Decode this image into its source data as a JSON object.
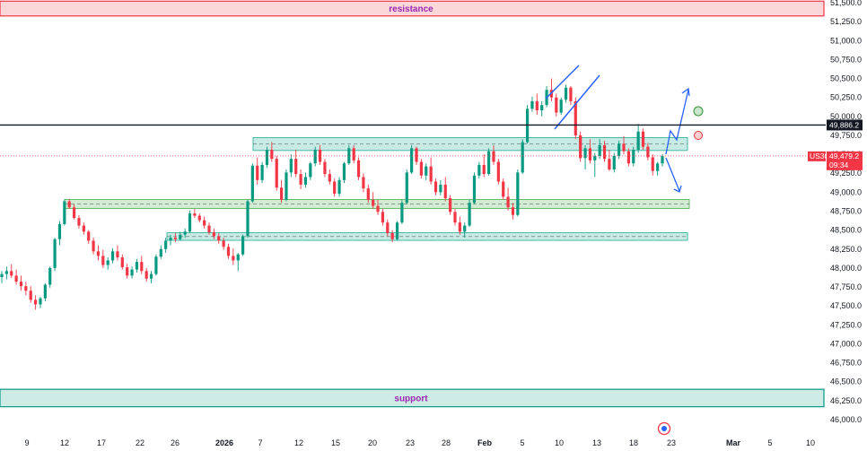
{
  "chart_data": {
    "type": "candlestick",
    "symbol_tag": "US30",
    "last_price": "49,479.2",
    "countdown": "09:34",
    "marked_level": "49,886.2",
    "x_tick_labels": [
      "9",
      "12",
      "17",
      "22",
      "26",
      "2026",
      "7",
      "12",
      "15",
      "20",
      "23",
      "28",
      "Feb",
      "5",
      "10",
      "13",
      "18",
      "23",
      "Mar",
      "5",
      "10"
    ],
    "y_tick_labels": [
      "51,500.0",
      "51,250.0",
      "51,000.0",
      "50,750.0",
      "50,500.0",
      "50,250.0",
      "50,000.0",
      "49,750.0",
      "49,500.0",
      "49,250.0",
      "49,000.0",
      "48,750.0",
      "48,500.0",
      "48,250.0",
      "48,000.0",
      "47,750.0",
      "47,500.0",
      "47,250.0",
      "47,000.0",
      "46,750.0",
      "46,500.0",
      "46,250.0",
      "46,000.0"
    ],
    "ylim": [
      46000,
      51500
    ],
    "zones": [
      {
        "label": "resistance",
        "low": 51325,
        "high": 51520,
        "color": "#f23645",
        "full_width": true
      },
      {
        "label": "support",
        "low": 46170,
        "high": 46400,
        "color": "#089981",
        "full_width": true
      },
      {
        "label": "",
        "low": 49550,
        "high": 49720,
        "color": "#22ab94",
        "full_width": false
      },
      {
        "label": "",
        "low": 48785,
        "high": 48905,
        "color": "#4caf50",
        "full_width": false
      },
      {
        "label": "",
        "low": 48365,
        "high": 48465,
        "color": "#22ab94",
        "full_width": false
      }
    ],
    "horizontal_level": 49886.2,
    "colors": {
      "up": "#089981",
      "down": "#f23645",
      "arrows": "#2962ff",
      "level": "#131722",
      "price_tag": "#f23645"
    },
    "ohlc": [
      [
        47880,
        47960,
        47800,
        47920
      ],
      [
        47920,
        48020,
        47850,
        47960
      ],
      [
        47960,
        48050,
        47870,
        47900
      ],
      [
        47900,
        47980,
        47780,
        47820
      ],
      [
        47820,
        47900,
        47700,
        47760
      ],
      [
        47760,
        47820,
        47640,
        47700
      ],
      [
        47700,
        47760,
        47540,
        47580
      ],
      [
        47580,
        47640,
        47450,
        47520
      ],
      [
        47520,
        47620,
        47470,
        47600
      ],
      [
        47600,
        47800,
        47560,
        47780
      ],
      [
        47780,
        48020,
        47740,
        48000
      ],
      [
        48000,
        48400,
        47960,
        48380
      ],
      [
        48380,
        48620,
        48300,
        48580
      ],
      [
        48580,
        48900,
        48560,
        48880
      ],
      [
        48880,
        48910,
        48780,
        48800
      ],
      [
        48800,
        48840,
        48640,
        48660
      ],
      [
        48660,
        48700,
        48520,
        48560
      ],
      [
        48560,
        48600,
        48440,
        48480
      ],
      [
        48480,
        48500,
        48320,
        48360
      ],
      [
        48360,
        48400,
        48180,
        48220
      ],
      [
        48220,
        48300,
        48100,
        48160
      ],
      [
        48160,
        48240,
        48000,
        48040
      ],
      [
        48040,
        48140,
        47980,
        48100
      ],
      [
        48100,
        48260,
        48060,
        48220
      ],
      [
        48220,
        48300,
        48100,
        48140
      ],
      [
        48140,
        48180,
        47980,
        48010
      ],
      [
        48010,
        48060,
        47860,
        47900
      ],
      [
        47900,
        48020,
        47860,
        47980
      ],
      [
        47980,
        48120,
        47940,
        48080
      ],
      [
        48080,
        48160,
        47920,
        47960
      ],
      [
        47960,
        48000,
        47820,
        47860
      ],
      [
        47860,
        47960,
        47800,
        47920
      ],
      [
        47920,
        48180,
        47900,
        48150
      ],
      [
        48150,
        48300,
        48120,
        48250
      ],
      [
        48250,
        48400,
        48200,
        48360
      ],
      [
        48360,
        48440,
        48300,
        48400
      ],
      [
        48400,
        48460,
        48340,
        48380
      ],
      [
        48380,
        48480,
        48360,
        48440
      ],
      [
        48440,
        48520,
        48400,
        48480
      ],
      [
        48480,
        48760,
        48460,
        48720
      ],
      [
        48720,
        48780,
        48660,
        48690
      ],
      [
        48690,
        48720,
        48600,
        48630
      ],
      [
        48630,
        48680,
        48520,
        48560
      ],
      [
        48560,
        48600,
        48440,
        48470
      ],
      [
        48470,
        48520,
        48380,
        48420
      ],
      [
        48420,
        48460,
        48320,
        48360
      ],
      [
        48360,
        48400,
        48240,
        48280
      ],
      [
        48280,
        48320,
        48120,
        48160
      ],
      [
        48160,
        48260,
        48040,
        48100
      ],
      [
        48100,
        48200,
        47960,
        48180
      ],
      [
        48180,
        48440,
        48160,
        48420
      ],
      [
        48420,
        48900,
        48400,
        48880
      ],
      [
        48880,
        49380,
        48860,
        49350
      ],
      [
        49350,
        49460,
        49100,
        49160
      ],
      [
        49160,
        49400,
        49120,
        49360
      ],
      [
        49360,
        49600,
        49320,
        49560
      ],
      [
        49560,
        49660,
        49400,
        49440
      ],
      [
        49440,
        49480,
        49020,
        49060
      ],
      [
        49060,
        49160,
        48860,
        48900
      ],
      [
        48900,
        49300,
        48880,
        49260
      ],
      [
        49260,
        49500,
        49200,
        49440
      ],
      [
        49440,
        49560,
        49200,
        49240
      ],
      [
        49240,
        49300,
        49040,
        49100
      ],
      [
        49100,
        49260,
        49060,
        49200
      ],
      [
        49200,
        49400,
        49160,
        49380
      ],
      [
        49380,
        49600,
        49340,
        49560
      ],
      [
        49560,
        49620,
        49360,
        49400
      ],
      [
        49400,
        49440,
        49200,
        49240
      ],
      [
        49240,
        49300,
        49100,
        49140
      ],
      [
        49140,
        49180,
        48940,
        48980
      ],
      [
        48980,
        49200,
        48940,
        49160
      ],
      [
        49160,
        49400,
        49120,
        49380
      ],
      [
        49380,
        49620,
        49360,
        49580
      ],
      [
        49580,
        49620,
        49380,
        49420
      ],
      [
        49420,
        49460,
        49160,
        49200
      ],
      [
        49200,
        49250,
        49000,
        49050
      ],
      [
        49050,
        49100,
        48860,
        48900
      ],
      [
        48900,
        49000,
        48780,
        48820
      ],
      [
        48820,
        48900,
        48700,
        48740
      ],
      [
        48740,
        48780,
        48560,
        48600
      ],
      [
        48600,
        48640,
        48420,
        48460
      ],
      [
        48460,
        48500,
        48340,
        48380
      ],
      [
        48380,
        48620,
        48360,
        48600
      ],
      [
        48600,
        48900,
        48580,
        48860
      ],
      [
        48860,
        49300,
        48840,
        49260
      ],
      [
        49260,
        49620,
        49240,
        49580
      ],
      [
        49580,
        49600,
        49360,
        49400
      ],
      [
        49400,
        49440,
        49180,
        49220
      ],
      [
        49220,
        49380,
        49160,
        49340
      ],
      [
        49340,
        49460,
        49100,
        49140
      ],
      [
        49140,
        49180,
        48960,
        49000
      ],
      [
        49000,
        49160,
        48960,
        49100
      ],
      [
        49100,
        49200,
        48880,
        48920
      ],
      [
        48920,
        48960,
        48700,
        48740
      ],
      [
        48740,
        48780,
        48560,
        48600
      ],
      [
        48600,
        48680,
        48440,
        48480
      ],
      [
        48480,
        48600,
        48400,
        48560
      ],
      [
        48560,
        48900,
        48540,
        48860
      ],
      [
        48860,
        49260,
        48840,
        49220
      ],
      [
        49220,
        49400,
        49180,
        49360
      ],
      [
        49360,
        49500,
        49200,
        49240
      ],
      [
        49240,
        49580,
        49220,
        49540
      ],
      [
        49540,
        49620,
        49360,
        49400
      ],
      [
        49400,
        49440,
        49100,
        49140
      ],
      [
        49140,
        49180,
        48900,
        48940
      ],
      [
        48940,
        49060,
        48760,
        48800
      ],
      [
        48800,
        48860,
        48640,
        48700
      ],
      [
        48700,
        49300,
        48680,
        49260
      ],
      [
        49260,
        49700,
        49240,
        49660
      ],
      [
        49660,
        50150,
        49640,
        50100
      ],
      [
        50100,
        50260,
        50060,
        50200
      ],
      [
        50200,
        50300,
        50020,
        50080
      ],
      [
        50080,
        50200,
        50000,
        50150
      ],
      [
        50150,
        50400,
        50120,
        50350
      ],
      [
        50350,
        50500,
        50200,
        50250
      ],
      [
        50250,
        50300,
        50000,
        50050
      ],
      [
        50050,
        50250,
        50020,
        50220
      ],
      [
        50220,
        50420,
        50180,
        50380
      ],
      [
        50380,
        50400,
        50150,
        50200
      ],
      [
        50200,
        50250,
        49700,
        49750
      ],
      [
        49750,
        49800,
        49400,
        49450
      ],
      [
        49450,
        49620,
        49300,
        49580
      ],
      [
        49580,
        49700,
        49380,
        49420
      ],
      [
        49420,
        49520,
        49200,
        49480
      ],
      [
        49480,
        49700,
        49440,
        49620
      ],
      [
        49620,
        49680,
        49400,
        49440
      ],
      [
        49440,
        49560,
        49280,
        49300
      ],
      [
        49300,
        49520,
        49260,
        49480
      ],
      [
        49480,
        49680,
        49440,
        49640
      ],
      [
        49640,
        49740,
        49500,
        49540
      ],
      [
        49540,
        49580,
        49340,
        49380
      ],
      [
        49380,
        49600,
        49340,
        49560
      ],
      [
        49560,
        49900,
        49520,
        49800
      ],
      [
        49800,
        49840,
        49560,
        49600
      ],
      [
        49600,
        49650,
        49420,
        49460
      ],
      [
        49460,
        49500,
        49220,
        49280
      ],
      [
        49280,
        49400,
        49220,
        49380
      ],
      [
        49380,
        49500,
        49340,
        49479
      ]
    ],
    "x_axis_label": "",
    "y_axis_label": ""
  }
}
